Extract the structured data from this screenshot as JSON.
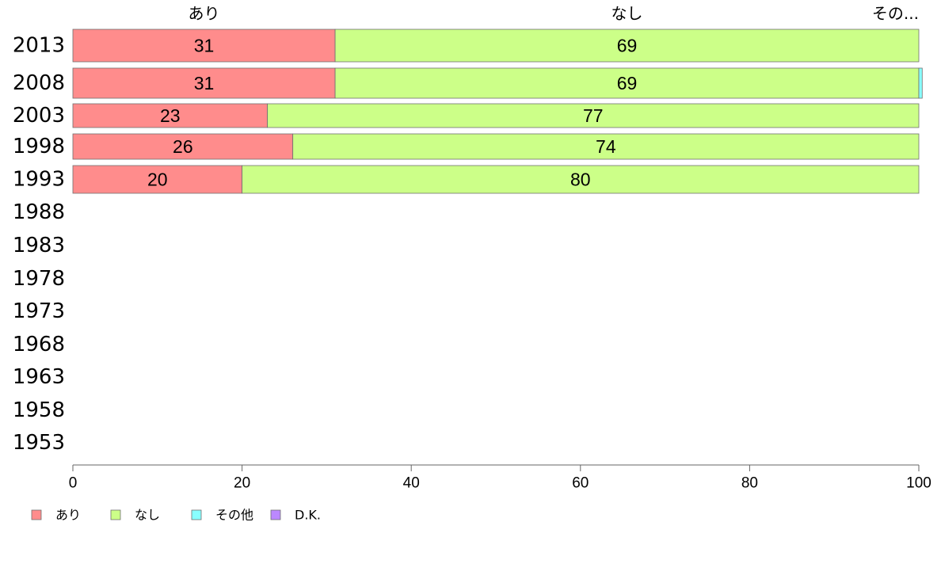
{
  "chart_data": {
    "type": "bar",
    "orientation": "horizontal",
    "stacked": true,
    "categories": [
      "2013",
      "2008",
      "2003",
      "1998",
      "1993",
      "1988",
      "1983",
      "1978",
      "1973",
      "1968",
      "1963",
      "1958",
      "1953"
    ],
    "series": [
      {
        "name": "あり",
        "color": "#ff8c8c",
        "values": [
          31,
          31,
          23,
          26,
          20,
          null,
          null,
          null,
          null,
          null,
          null,
          null,
          null
        ]
      },
      {
        "name": "なし",
        "color": "#ccff88",
        "values": [
          69,
          69,
          77,
          74,
          80,
          null,
          null,
          null,
          null,
          null,
          null,
          null,
          null
        ]
      },
      {
        "name": "その他",
        "color": "#88ffff",
        "values": [
          0,
          0.4,
          0,
          0,
          0,
          null,
          null,
          null,
          null,
          null,
          null,
          null,
          null
        ]
      },
      {
        "name": "D.K.",
        "color": "#bb88ff",
        "values": [
          0,
          0,
          0,
          0,
          0,
          null,
          null,
          null,
          null,
          null,
          null,
          null,
          null
        ]
      }
    ],
    "data_labels": [
      [
        "31",
        "69",
        "",
        ""
      ],
      [
        "31",
        "69",
        "",
        ""
      ],
      [
        "23",
        "77",
        "",
        ""
      ],
      [
        "26",
        "74",
        "",
        ""
      ],
      [
        "20",
        "80",
        "",
        ""
      ]
    ],
    "top_labels": [
      "あり",
      "なし",
      "その..."
    ],
    "x_ticks": [
      "0",
      "20",
      "40",
      "60",
      "80",
      "100"
    ],
    "xlim": [
      0,
      100
    ],
    "title": "",
    "xlabel": "",
    "ylabel": "",
    "grid": false,
    "legend": {
      "position": "bottom-left"
    }
  }
}
